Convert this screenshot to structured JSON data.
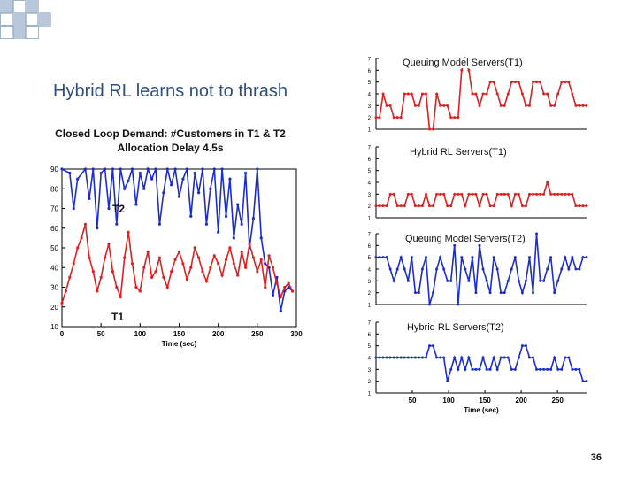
{
  "slide": {
    "title": "Hybrid RL learns not to thrash",
    "subtitle_line1": "Closed Loop Demand: #Customers in T1 & T2",
    "subtitle_line2": "Allocation Delay 4.5s",
    "page_number": "36",
    "colors": {
      "red_series": "#e02020",
      "blue_series": "#1c2cd0",
      "title_blue": "#2e4f7f"
    }
  },
  "chart_data": [
    {
      "type": "line",
      "title": "Closed Loop Demand: #Customers in T1 & T2",
      "xlabel": "Time (sec)",
      "ylabel": "",
      "xlim": [
        0,
        300
      ],
      "ylim": [
        10,
        90
      ],
      "xticks": [
        "0",
        "50",
        "100",
        "150",
        "200",
        "250",
        "300"
      ],
      "yticks": [
        "10",
        "20",
        "30",
        "40",
        "50",
        "60",
        "70",
        "80",
        "90"
      ],
      "series": [
        {
          "name": "T2",
          "color": "#1c2cd0",
          "x": [
            0,
            10,
            15,
            20,
            30,
            35,
            40,
            45,
            50,
            55,
            60,
            65,
            70,
            75,
            80,
            85,
            90,
            95,
            100,
            105,
            110,
            115,
            120,
            125,
            130,
            135,
            140,
            145,
            150,
            155,
            160,
            165,
            170,
            175,
            180,
            185,
            190,
            195,
            200,
            205,
            210,
            215,
            220,
            225,
            230,
            235,
            240,
            245,
            250,
            255,
            260,
            265,
            270,
            275,
            280,
            285,
            290,
            295
          ],
          "values": [
            90,
            88,
            70,
            85,
            90,
            75,
            90,
            60,
            88,
            90,
            70,
            90,
            62,
            90,
            80,
            84,
            90,
            72,
            88,
            80,
            90,
            85,
            90,
            62,
            78,
            90,
            82,
            90,
            76,
            85,
            90,
            66,
            88,
            78,
            90,
            62,
            80,
            90,
            58,
            90,
            66,
            85,
            55,
            72,
            62,
            88,
            50,
            65,
            90,
            55,
            42,
            40,
            26,
            35,
            18,
            28,
            30,
            28
          ]
        },
        {
          "name": "T1",
          "color": "#e02020",
          "x": [
            0,
            5,
            10,
            15,
            20,
            25,
            30,
            35,
            40,
            45,
            50,
            55,
            60,
            65,
            70,
            75,
            80,
            85,
            90,
            95,
            100,
            105,
            110,
            115,
            120,
            125,
            130,
            135,
            140,
            145,
            150,
            155,
            160,
            165,
            170,
            175,
            180,
            185,
            190,
            195,
            200,
            205,
            210,
            215,
            220,
            225,
            230,
            235,
            240,
            245,
            250,
            255,
            260,
            265,
            270,
            275,
            280,
            285,
            290,
            295
          ],
          "values": [
            22,
            28,
            35,
            42,
            50,
            55,
            62,
            45,
            38,
            28,
            35,
            45,
            52,
            38,
            30,
            25,
            45,
            58,
            42,
            30,
            28,
            40,
            48,
            35,
            38,
            45,
            35,
            30,
            38,
            44,
            48,
            42,
            34,
            40,
            50,
            45,
            38,
            33,
            40,
            46,
            42,
            36,
            44,
            50,
            42,
            36,
            48,
            40,
            52,
            45,
            38,
            44,
            30,
            46,
            40,
            32,
            25,
            30,
            32,
            28
          ]
        }
      ]
    },
    {
      "type": "line",
      "title": "Queuing Model Servers(T1)",
      "ylim": [
        1,
        7
      ],
      "yticks": [
        "1",
        "2",
        "3",
        "4",
        "5",
        "6",
        "7"
      ],
      "series": [
        {
          "name": "Queuing Model Servers(T1)",
          "color": "#e02020",
          "values": [
            2,
            2,
            4,
            3,
            3,
            2,
            2,
            2,
            4,
            4,
            4,
            3,
            3,
            4,
            4,
            1,
            1,
            4,
            3,
            3,
            3,
            2,
            2,
            2,
            6,
            7,
            6,
            4,
            4,
            3,
            4,
            4,
            5,
            5,
            4,
            3,
            3,
            4,
            5,
            5,
            5,
            4,
            3,
            3,
            5,
            5,
            5,
            4,
            4,
            3,
            3,
            4,
            5,
            5,
            5,
            4,
            3,
            3,
            3,
            3
          ]
        }
      ]
    },
    {
      "type": "line",
      "title": "Hybrid RL Servers(T1)",
      "ylim": [
        1,
        7
      ],
      "yticks": [
        "1",
        "2",
        "3",
        "4",
        "5",
        "6",
        "7"
      ],
      "series": [
        {
          "name": "Hybrid RL Servers(T1)",
          "color": "#e02020",
          "values": [
            2,
            2,
            2,
            2,
            3,
            3,
            2,
            2,
            2,
            3,
            3,
            2,
            2,
            2,
            3,
            2,
            2,
            3,
            3,
            3,
            2,
            2,
            3,
            3,
            3,
            2,
            3,
            3,
            3,
            2,
            3,
            3,
            2,
            2,
            3,
            3,
            3,
            3,
            2,
            3,
            3,
            2,
            2,
            3,
            3,
            3,
            3,
            3,
            4,
            3,
            3,
            3,
            3,
            3,
            3,
            3,
            2,
            2,
            2,
            2
          ]
        }
      ]
    },
    {
      "type": "line",
      "title": "Queuing Model Servers(T2)",
      "ylim": [
        1,
        7
      ],
      "yticks": [
        "1",
        "2",
        "3",
        "4",
        "5",
        "6",
        "7"
      ],
      "series": [
        {
          "name": "Queuing Model Servers(T2)",
          "color": "#1c2cd0",
          "values": [
            5,
            5,
            5,
            5,
            4,
            3,
            4,
            5,
            4,
            3,
            5,
            2,
            2,
            4,
            5,
            1,
            2,
            4,
            5,
            4,
            3,
            3,
            6,
            1,
            5,
            4,
            3,
            5,
            2,
            6,
            4,
            3,
            2,
            5,
            4,
            2,
            2,
            3,
            4,
            5,
            3,
            2,
            3,
            5,
            2,
            7,
            3,
            3,
            4,
            5,
            2,
            3,
            4,
            5,
            4,
            5,
            4,
            4,
            5,
            5
          ]
        }
      ]
    },
    {
      "type": "line",
      "title": "Hybrid RL Servers(T2)",
      "xlabel": "Time (sec)",
      "xlim": [
        0,
        290
      ],
      "xticks": [
        "50",
        "100",
        "150",
        "200",
        "250"
      ],
      "ylim": [
        1,
        7
      ],
      "yticks": [
        "1",
        "2",
        "3",
        "4",
        "5",
        "6",
        "7"
      ],
      "series": [
        {
          "name": "Hybrid RL Servers(T2)",
          "color": "#1c2cd0",
          "values": [
            4,
            4,
            4,
            4,
            4,
            4,
            4,
            4,
            4,
            4,
            4,
            4,
            4,
            4,
            4,
            5,
            5,
            4,
            4,
            4,
            2,
            3,
            4,
            3,
            4,
            3,
            4,
            3,
            3,
            3,
            4,
            3,
            3,
            4,
            3,
            4,
            4,
            4,
            3,
            3,
            4,
            5,
            5,
            4,
            4,
            3,
            3,
            3,
            3,
            3,
            4,
            3,
            3,
            4,
            4,
            3,
            3,
            3,
            2,
            2
          ]
        }
      ]
    }
  ]
}
